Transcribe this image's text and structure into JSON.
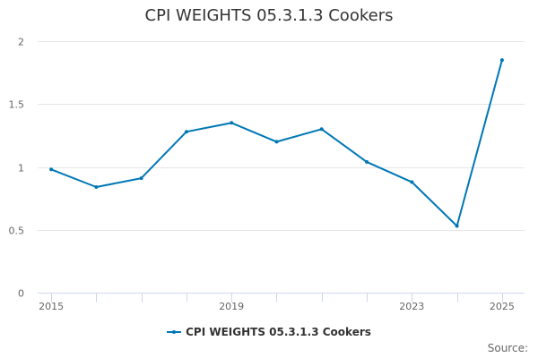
{
  "chart_data": {
    "type": "line",
    "title": "CPI WEIGHTS 05.3.1.3 Cookers",
    "xlabel": "",
    "ylabel": "",
    "x": [
      2015,
      2016,
      2017,
      2018,
      2019,
      2020,
      2021,
      2022,
      2023,
      2024,
      2025
    ],
    "x_ticks": [
      2015,
      2016,
      2017,
      2018,
      2019,
      2020,
      2021,
      2022,
      2023,
      2024,
      2025
    ],
    "x_tick_labels": [
      "2015",
      "2019",
      "2023",
      "2025"
    ],
    "xlim": [
      2014.7,
      2025.5
    ],
    "y_ticks": [
      "0",
      "0.5",
      "1",
      "1.5",
      "2"
    ],
    "ylim": [
      0,
      2
    ],
    "grid": true,
    "legend_position": "bottom-center",
    "series": [
      {
        "name": "CPI WEIGHTS 05.3.1.3 Cookers",
        "color": "#0077b5",
        "values": [
          0.98,
          0.84,
          0.91,
          1.28,
          1.35,
          1.2,
          1.3,
          1.04,
          0.88,
          0.53,
          1.85
        ]
      }
    ]
  },
  "credits": "Source:"
}
